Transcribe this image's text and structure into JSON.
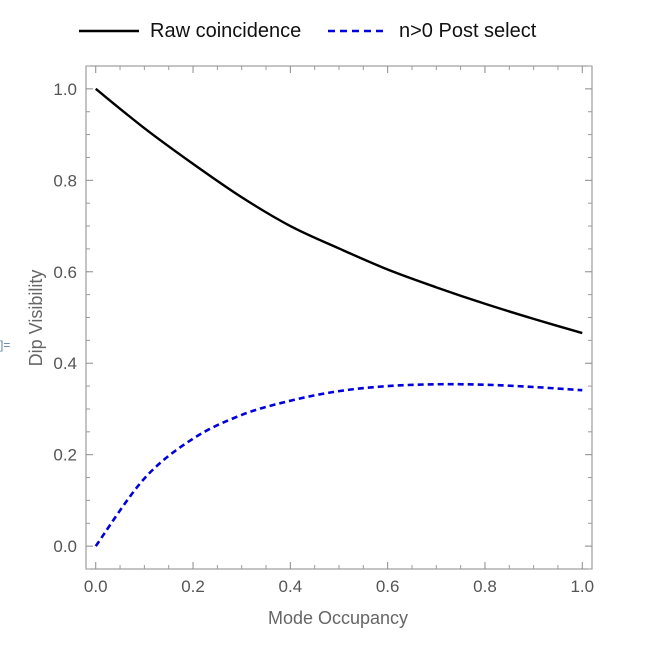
{
  "side_marker": "]=",
  "chart_data": {
    "type": "line",
    "title": "",
    "xlabel": "Mode Occupancy",
    "ylabel": "Dip Visibility",
    "xlim": [
      -0.02,
      1.02
    ],
    "ylim": [
      -0.05,
      1.05
    ],
    "x_ticks": [
      "0.0",
      "0.2",
      "0.4",
      "0.6",
      "0.8",
      "1.0"
    ],
    "y_ticks": [
      "0.0",
      "0.2",
      "0.4",
      "0.6",
      "0.8",
      "1.0"
    ],
    "grid": false,
    "legend_position": "top",
    "series": [
      {
        "name": "Raw coincidence",
        "style": "solid",
        "color": "#000000",
        "x": [
          0.0,
          0.1,
          0.2,
          0.3,
          0.4,
          0.5,
          0.6,
          0.7,
          0.8,
          0.9,
          1.0
        ],
        "y": [
          1.0,
          0.914,
          0.836,
          0.763,
          0.7,
          0.651,
          0.605,
          0.566,
          0.53,
          0.497,
          0.466
        ]
      },
      {
        "name": "n>0 Post select",
        "style": "dashed",
        "color": "#0000dd",
        "x": [
          0.0,
          0.1,
          0.2,
          0.3,
          0.4,
          0.5,
          0.6,
          0.7,
          0.8,
          0.9,
          1.0
        ],
        "y": [
          0.0,
          0.148,
          0.235,
          0.287,
          0.318,
          0.339,
          0.35,
          0.354,
          0.353,
          0.348,
          0.341
        ]
      }
    ]
  }
}
